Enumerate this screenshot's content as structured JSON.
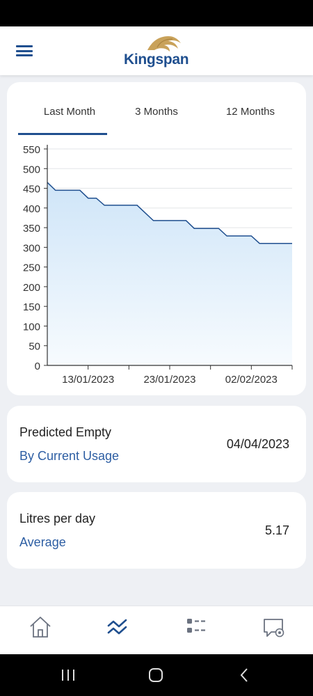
{
  "app": {
    "brand": "Kingspan"
  },
  "icons": {
    "menu": "hamburger-menu-icon",
    "home": "home-icon",
    "trend": "trend-chart-icon",
    "list": "checklist-icon",
    "chat": "chat-settings-icon",
    "recent": "recent-apps-icon",
    "home_sys": "system-home-icon",
    "back": "back-icon"
  },
  "colors": {
    "accent": "#1f4f8f",
    "link": "#2d5ea3",
    "area_top": "#cfe5f8",
    "background": "#eef0f4"
  },
  "tabs": [
    {
      "label": "Last Month",
      "active": true
    },
    {
      "label": "3 Months",
      "active": false
    },
    {
      "label": "12 Months",
      "active": false
    }
  ],
  "chart_data": {
    "type": "area",
    "ylim": [
      0,
      550
    ],
    "y_ticks": [
      0,
      50,
      100,
      150,
      200,
      250,
      300,
      350,
      400,
      450,
      500,
      550
    ],
    "x_tick_labels": [
      "13/01/2023",
      "23/01/2023",
      "02/02/2023"
    ],
    "x_tick_positions": [
      "2023-01-13",
      "2023-01-23",
      "2023-02-02"
    ],
    "xlim": [
      "2023-01-08",
      "2023-02-07"
    ],
    "grid": true,
    "series": [
      {
        "points": [
          [
            "2023-01-08",
            465
          ],
          [
            "2023-01-09",
            445
          ],
          [
            "2023-01-12",
            445
          ],
          [
            "2023-01-13",
            425
          ],
          [
            "2023-01-14",
            425
          ],
          [
            "2023-01-15",
            407
          ],
          [
            "2023-01-19",
            407
          ],
          [
            "2023-01-21",
            368
          ],
          [
            "2023-01-25",
            368
          ],
          [
            "2023-01-26",
            348
          ],
          [
            "2023-01-29",
            348
          ],
          [
            "2023-01-30",
            329
          ],
          [
            "2023-02-02",
            329
          ],
          [
            "2023-02-03",
            310
          ],
          [
            "2023-02-07",
            310
          ]
        ]
      }
    ]
  },
  "predicted": {
    "title": "Predicted Empty",
    "subtitle": "By Current Usage",
    "value": "04/04/2023"
  },
  "litres": {
    "title": "Litres per day",
    "subtitle": "Average",
    "value": "5.17"
  }
}
